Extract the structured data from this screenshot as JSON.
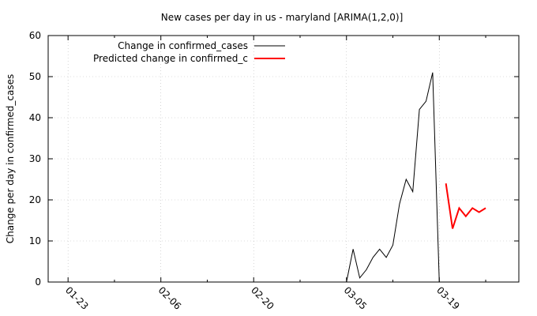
{
  "chart_data": {
    "type": "line",
    "title": "New cases per day in us - maryland [ARIMA(1,2,0)]",
    "xlabel": "",
    "ylabel": "Change per day in confirmed_cases",
    "x_axis": {
      "type": "date",
      "range": [
        "2020-01-20",
        "2020-03-31"
      ],
      "tick_labels": [
        {
          "label": "01-23",
          "date": "2020-01-23"
        },
        {
          "label": "02-06",
          "date": "2020-02-06"
        },
        {
          "label": "02-20",
          "date": "2020-02-20"
        },
        {
          "label": "03-05",
          "date": "2020-03-05"
        },
        {
          "label": "03-19",
          "date": "2020-03-19"
        }
      ],
      "minor_tick_dates": [
        "2020-01-30",
        "2020-02-13",
        "2020-02-27",
        "2020-03-12",
        "2020-03-26"
      ]
    },
    "ylim": [
      0,
      60
    ],
    "yticks": [
      0,
      10,
      20,
      30,
      40,
      50,
      60
    ],
    "grid": true,
    "legend_position": "top-left",
    "series": [
      {
        "name": "Change in confirmed_cases",
        "color": "#000000",
        "points": [
          {
            "x": "2020-03-05",
            "y": 0
          },
          {
            "x": "2020-03-06",
            "y": 8
          },
          {
            "x": "2020-03-07",
            "y": 1
          },
          {
            "x": "2020-03-08",
            "y": 3
          },
          {
            "x": "2020-03-09",
            "y": 6
          },
          {
            "x": "2020-03-10",
            "y": 8
          },
          {
            "x": "2020-03-11",
            "y": 6
          },
          {
            "x": "2020-03-12",
            "y": 9
          },
          {
            "x": "2020-03-13",
            "y": 19
          },
          {
            "x": "2020-03-14",
            "y": 25
          },
          {
            "x": "2020-03-15",
            "y": 22
          },
          {
            "x": "2020-03-16",
            "y": 42
          },
          {
            "x": "2020-03-17",
            "y": 44
          },
          {
            "x": "2020-03-18",
            "y": 51
          },
          {
            "x": "2020-03-19",
            "y": 0
          }
        ]
      },
      {
        "name": "Predicted change in confirmed_c",
        "color": "#ff0000",
        "points": [
          {
            "x": "2020-03-20",
            "y": 24
          },
          {
            "x": "2020-03-21",
            "y": 13
          },
          {
            "x": "2020-03-22",
            "y": 18
          },
          {
            "x": "2020-03-23",
            "y": 16
          },
          {
            "x": "2020-03-24",
            "y": 18
          },
          {
            "x": "2020-03-25",
            "y": 17
          },
          {
            "x": "2020-03-26",
            "y": 18
          }
        ]
      }
    ]
  }
}
